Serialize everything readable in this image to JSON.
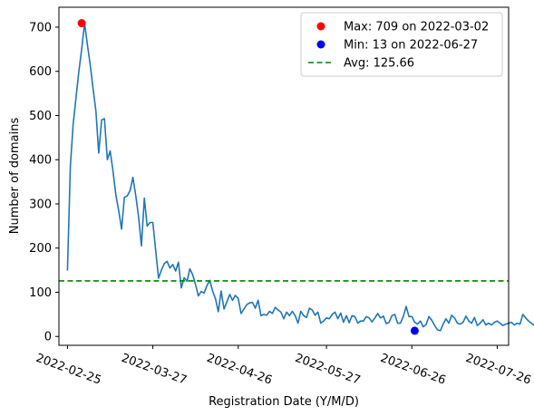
{
  "chart_data": {
    "type": "line",
    "xlabel": "Registration Date (Y/M/D)",
    "ylabel": "Number of domains",
    "x_ticks": [
      "2022-02-25",
      "2022-03-27",
      "2022-04-26",
      "2022-05-27",
      "2022-06-26",
      "2022-07-26"
    ],
    "y_ticks": [
      0,
      100,
      200,
      300,
      400,
      500,
      600,
      700
    ],
    "ylim": [
      -20,
      745
    ],
    "xlim": [
      "2022-02-22",
      "2022-07-30"
    ],
    "grid": false,
    "legend_position": "top-right",
    "colors": {
      "line": "#1f77b4",
      "max": "#ff0000",
      "min": "#0000ff",
      "avg": "#008000"
    },
    "series": [
      {
        "start_date": "2022-02-25",
        "values": [
          149,
          385,
          480,
          540,
          600,
          650,
          709,
          660,
          615,
          560,
          510,
          415,
          490,
          493,
          400,
          420,
          375,
          320,
          285,
          243,
          315,
          318,
          330,
          360,
          318,
          270,
          205,
          313,
          250,
          258,
          258,
          195,
          132,
          150,
          165,
          170,
          155,
          163,
          148,
          168,
          110,
          133,
          125,
          153,
          140,
          117,
          92,
          102,
          98,
          115,
          127,
          103,
          85,
          56,
          103,
          62,
          78,
          95,
          82,
          93,
          86,
          52,
          62,
          72,
          76,
          77,
          64,
          82,
          47,
          50,
          48,
          57,
          52,
          66,
          60,
          55,
          40,
          55,
          47,
          57,
          47,
          30,
          57,
          47,
          43,
          64,
          60,
          48,
          55,
          30,
          35,
          42,
          40,
          50,
          55,
          40,
          53,
          32,
          47,
          31,
          47,
          45,
          30,
          35,
          35,
          45,
          42,
          33,
          42,
          52,
          42,
          46,
          29,
          32,
          47,
          50,
          30,
          30,
          45,
          68,
          45,
          45,
          32,
          28,
          35,
          22,
          27,
          45,
          37,
          25,
          15,
          13,
          28,
          40,
          30,
          48,
          42,
          30,
          28,
          32,
          46,
          35,
          30,
          43,
          25,
          30,
          38,
          26,
          30,
          26,
          32,
          35,
          30,
          25,
          28,
          30,
          32,
          26,
          30,
          28,
          50,
          42,
          35,
          30,
          25,
          18,
          23
        ]
      }
    ],
    "legend": [
      {
        "label": "Max: 709 on 2022-03-02",
        "marker": "dot",
        "color": "#ff0000"
      },
      {
        "label": "Min: 13 on 2022-06-27",
        "marker": "dot",
        "color": "#0000ff"
      },
      {
        "label": "Avg: 125.66",
        "marker": "dashed-line",
        "color": "#008000"
      }
    ],
    "markers": {
      "max": {
        "date": "2022-03-02",
        "value": 709
      },
      "min": {
        "date": "2022-06-27",
        "value": 13
      },
      "avg": 125.66
    }
  }
}
